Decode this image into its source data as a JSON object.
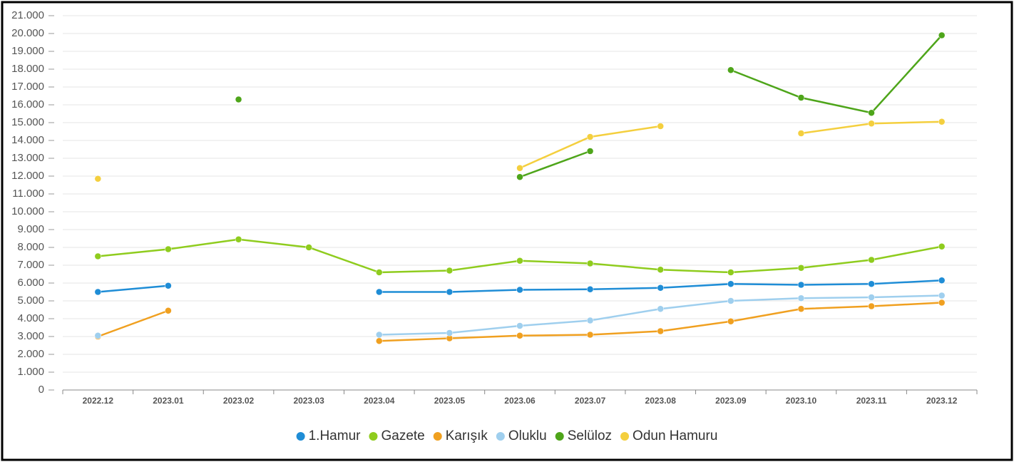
{
  "chart_data": {
    "type": "line",
    "categories": [
      "2022.12",
      "2023.01",
      "2023.02",
      "2023.03",
      "2023.04",
      "2023.05",
      "2023.06",
      "2023.07",
      "2023.08",
      "2023.09",
      "2023.10",
      "2023.11",
      "2023.12"
    ],
    "series": [
      {
        "name": "1.Hamur",
        "color": "#1f8dd6",
        "values": [
          5500,
          5850,
          null,
          null,
          5500,
          5500,
          5620,
          5650,
          5730,
          5950,
          5900,
          5950,
          6150
        ]
      },
      {
        "name": "Gazete",
        "color": "#8fcc1e",
        "values": [
          7500,
          7900,
          8450,
          8000,
          6600,
          6700,
          7250,
          7100,
          6750,
          6600,
          6850,
          7300,
          8050
        ]
      },
      {
        "name": "Karışık",
        "color": "#f0a020",
        "values": [
          3000,
          4450,
          null,
          null,
          2750,
          2900,
          3050,
          3100,
          3300,
          3850,
          4550,
          4700,
          4900
        ]
      },
      {
        "name": "Oluklu",
        "color": "#9fcfee",
        "values": [
          3050,
          null,
          null,
          null,
          3100,
          3200,
          3600,
          3900,
          4550,
          5000,
          5150,
          5200,
          5300
        ]
      },
      {
        "name": "Selüloz",
        "color": "#4ea51a",
        "values": [
          null,
          null,
          16300,
          null,
          null,
          null,
          11950,
          13400,
          null,
          17950,
          16400,
          15550,
          19900
        ]
      },
      {
        "name": "Odun Hamuru",
        "color": "#f4cf3e",
        "values": [
          11850,
          null,
          null,
          null,
          null,
          null,
          12450,
          14200,
          14800,
          null,
          14400,
          14950,
          15050
        ]
      }
    ],
    "ylim": [
      0,
      21000
    ],
    "yticks": [
      0,
      {
        "value": 1000,
        "label": "1.000"
      },
      {
        "value": 2000,
        "label": "2.000"
      },
      {
        "value": 3000,
        "label": "3.000"
      },
      {
        "value": 4000,
        "label": "4.000"
      },
      {
        "value": 5000,
        "label": "5.000"
      },
      {
        "value": 6000,
        "label": "6.000"
      },
      {
        "value": 7000,
        "label": "7.000"
      },
      {
        "value": 8000,
        "label": "8.000"
      },
      {
        "value": 9000,
        "label": "9.000"
      },
      {
        "value": 10000,
        "label": "10.000"
      },
      {
        "value": 11000,
        "label": "11.000"
      },
      {
        "value": 12000,
        "label": "12.000"
      },
      {
        "value": 13000,
        "label": "13.000"
      },
      {
        "value": 14000,
        "label": "14.000"
      },
      {
        "value": 15000,
        "label": "15.000"
      },
      {
        "value": 16000,
        "label": "16.000"
      },
      {
        "value": 17000,
        "label": "17.000"
      },
      {
        "value": 18000,
        "label": "18.000"
      },
      {
        "value": 19000,
        "label": "19.000"
      },
      {
        "value": 20000,
        "label": "20.000"
      },
      {
        "value": 21000,
        "label": "21.000"
      }
    ],
    "grid": true,
    "legend": "bottom"
  }
}
